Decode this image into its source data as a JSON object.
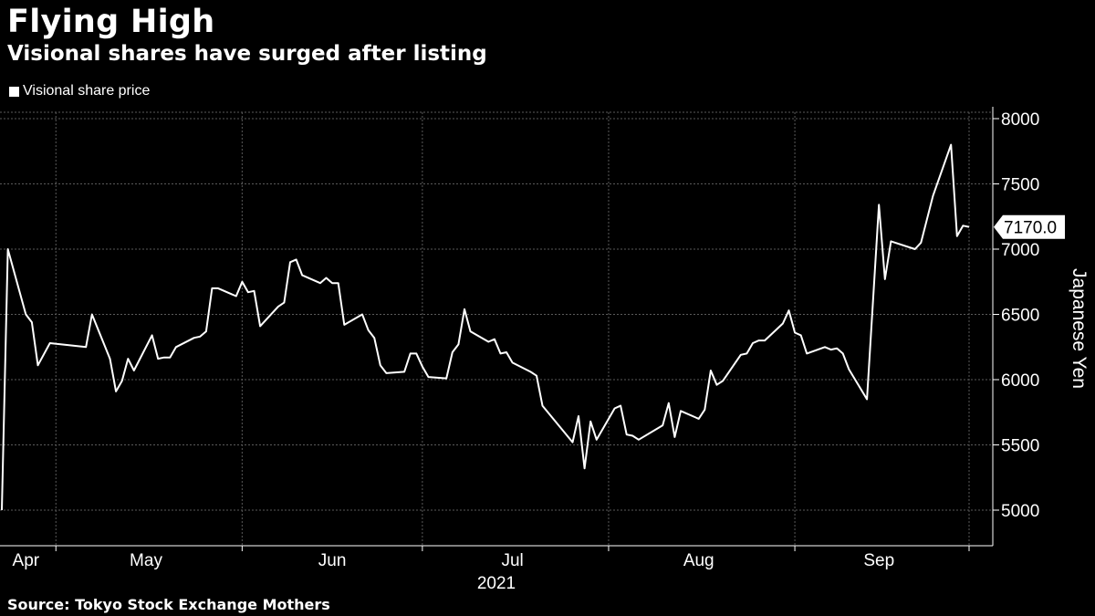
{
  "header": {
    "title": "Flying High",
    "subtitle": "Visional shares have surged after listing"
  },
  "footer": {
    "source": "Source: Tokyo Stock Exchange Mothers"
  },
  "chart_data": {
    "type": "line",
    "title": "Flying High",
    "subtitle": "Visional shares have surged after listing",
    "ylabel": "Japanese Yen",
    "ylim": [
      4750,
      8100
    ],
    "yticks": [
      5000,
      5500,
      6000,
      6500,
      7000,
      7500,
      8000
    ],
    "grid": true,
    "legend_placement": "top-left",
    "last_value_label": "7170.0",
    "line_color": "#ffffff",
    "background_color": "#000000",
    "x_range": [
      "2021-04-22",
      "2021-09-30"
    ],
    "x_month_boundaries": [
      "2021-05-01",
      "2021-06-01",
      "2021-07-01",
      "2021-08-01",
      "2021-09-01",
      "2021-10-01"
    ],
    "x_tick_labels": [
      {
        "label": "Apr",
        "date": "2021-04-26"
      },
      {
        "label": "May",
        "date": "2021-05-16"
      },
      {
        "label": "Jun",
        "date": "2021-06-16"
      },
      {
        "label": "Jul",
        "date": "2021-07-16"
      },
      {
        "label": "Aug",
        "date": "2021-08-16"
      },
      {
        "label": "Sep",
        "date": "2021-09-15"
      }
    ],
    "year_label": "2021",
    "series": [
      {
        "name": "Visional share price",
        "points": [
          [
            "2021-04-22",
            5000
          ],
          [
            "2021-04-23",
            7000
          ],
          [
            "2021-04-26",
            6500
          ],
          [
            "2021-04-27",
            6440
          ],
          [
            "2021-04-28",
            6110
          ],
          [
            "2021-04-30",
            6280
          ],
          [
            "2021-05-06",
            6250
          ],
          [
            "2021-05-07",
            6500
          ],
          [
            "2021-05-10",
            6160
          ],
          [
            "2021-05-11",
            5910
          ],
          [
            "2021-05-12",
            5990
          ],
          [
            "2021-05-13",
            6160
          ],
          [
            "2021-05-14",
            6070
          ],
          [
            "2021-05-17",
            6340
          ],
          [
            "2021-05-18",
            6160
          ],
          [
            "2021-05-19",
            6170
          ],
          [
            "2021-05-20",
            6170
          ],
          [
            "2021-05-21",
            6250
          ],
          [
            "2021-05-24",
            6320
          ],
          [
            "2021-05-25",
            6330
          ],
          [
            "2021-05-26",
            6370
          ],
          [
            "2021-05-27",
            6700
          ],
          [
            "2021-05-28",
            6700
          ],
          [
            "2021-05-31",
            6640
          ],
          [
            "2021-06-01",
            6750
          ],
          [
            "2021-06-02",
            6670
          ],
          [
            "2021-06-03",
            6680
          ],
          [
            "2021-06-04",
            6410
          ],
          [
            "2021-06-07",
            6560
          ],
          [
            "2021-06-08",
            6590
          ],
          [
            "2021-06-09",
            6900
          ],
          [
            "2021-06-10",
            6920
          ],
          [
            "2021-06-11",
            6800
          ],
          [
            "2021-06-14",
            6740
          ],
          [
            "2021-06-15",
            6780
          ],
          [
            "2021-06-16",
            6740
          ],
          [
            "2021-06-17",
            6740
          ],
          [
            "2021-06-18",
            6420
          ],
          [
            "2021-06-21",
            6500
          ],
          [
            "2021-06-22",
            6380
          ],
          [
            "2021-06-23",
            6320
          ],
          [
            "2021-06-24",
            6110
          ],
          [
            "2021-06-25",
            6050
          ],
          [
            "2021-06-28",
            6060
          ],
          [
            "2021-06-29",
            6200
          ],
          [
            "2021-06-30",
            6200
          ],
          [
            "2021-07-01",
            6100
          ],
          [
            "2021-07-02",
            6020
          ],
          [
            "2021-07-05",
            6010
          ],
          [
            "2021-07-06",
            6210
          ],
          [
            "2021-07-07",
            6270
          ],
          [
            "2021-07-08",
            6540
          ],
          [
            "2021-07-09",
            6370
          ],
          [
            "2021-07-12",
            6290
          ],
          [
            "2021-07-13",
            6310
          ],
          [
            "2021-07-14",
            6200
          ],
          [
            "2021-07-15",
            6210
          ],
          [
            "2021-07-16",
            6130
          ],
          [
            "2021-07-19",
            6060
          ],
          [
            "2021-07-20",
            6030
          ],
          [
            "2021-07-21",
            5800
          ],
          [
            "2021-07-26",
            5520
          ],
          [
            "2021-07-27",
            5720
          ],
          [
            "2021-07-28",
            5320
          ],
          [
            "2021-07-29",
            5680
          ],
          [
            "2021-07-30",
            5540
          ],
          [
            "2021-08-02",
            5780
          ],
          [
            "2021-08-03",
            5800
          ],
          [
            "2021-08-04",
            5580
          ],
          [
            "2021-08-05",
            5570
          ],
          [
            "2021-08-06",
            5540
          ],
          [
            "2021-08-10",
            5650
          ],
          [
            "2021-08-11",
            5820
          ],
          [
            "2021-08-12",
            5560
          ],
          [
            "2021-08-13",
            5760
          ],
          [
            "2021-08-16",
            5700
          ],
          [
            "2021-08-17",
            5770
          ],
          [
            "2021-08-18",
            6070
          ],
          [
            "2021-08-19",
            5960
          ],
          [
            "2021-08-20",
            5990
          ],
          [
            "2021-08-23",
            6190
          ],
          [
            "2021-08-24",
            6200
          ],
          [
            "2021-08-25",
            6280
          ],
          [
            "2021-08-26",
            6300
          ],
          [
            "2021-08-27",
            6300
          ],
          [
            "2021-08-30",
            6430
          ],
          [
            "2021-08-31",
            6530
          ],
          [
            "2021-09-01",
            6360
          ],
          [
            "2021-09-02",
            6340
          ],
          [
            "2021-09-03",
            6200
          ],
          [
            "2021-09-06",
            6250
          ],
          [
            "2021-09-07",
            6230
          ],
          [
            "2021-09-08",
            6240
          ],
          [
            "2021-09-09",
            6200
          ],
          [
            "2021-09-10",
            6080
          ],
          [
            "2021-09-13",
            5850
          ],
          [
            "2021-09-14",
            6600
          ],
          [
            "2021-09-15",
            7340
          ],
          [
            "2021-09-16",
            6770
          ],
          [
            "2021-09-17",
            7060
          ],
          [
            "2021-09-21",
            7000
          ],
          [
            "2021-09-22",
            7050
          ],
          [
            "2021-09-24",
            7410
          ],
          [
            "2021-09-27",
            7800
          ],
          [
            "2021-09-28",
            7100
          ],
          [
            "2021-09-29",
            7180
          ],
          [
            "2021-09-30",
            7170
          ]
        ]
      }
    ]
  }
}
